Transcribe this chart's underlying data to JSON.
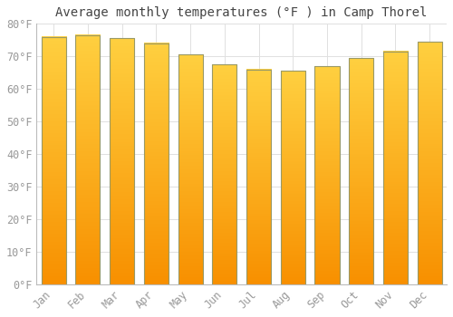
{
  "title": "Average monthly temperatures (°F ) in Camp Thorel",
  "months": [
    "Jan",
    "Feb",
    "Mar",
    "Apr",
    "May",
    "Jun",
    "Jul",
    "Aug",
    "Sep",
    "Oct",
    "Nov",
    "Dec"
  ],
  "values": [
    76.0,
    76.5,
    75.5,
    74.0,
    70.5,
    67.5,
    66.0,
    65.5,
    67.0,
    69.5,
    71.5,
    74.5
  ],
  "bar_color_top": "#FFD040",
  "bar_color_bottom": "#F89000",
  "bar_edge_color": "#888800",
  "background_color": "#ffffff",
  "plot_bg_color": "#ffffff",
  "ylim": [
    0,
    80
  ],
  "yticks": [
    0,
    10,
    20,
    30,
    40,
    50,
    60,
    70,
    80
  ],
  "ytick_labels": [
    "0°F",
    "10°F",
    "20°F",
    "30°F",
    "40°F",
    "50°F",
    "60°F",
    "70°F",
    "80°F"
  ],
  "title_fontsize": 10,
  "tick_fontsize": 8.5,
  "grid_color": "#e0e0e0",
  "tick_color": "#999999"
}
